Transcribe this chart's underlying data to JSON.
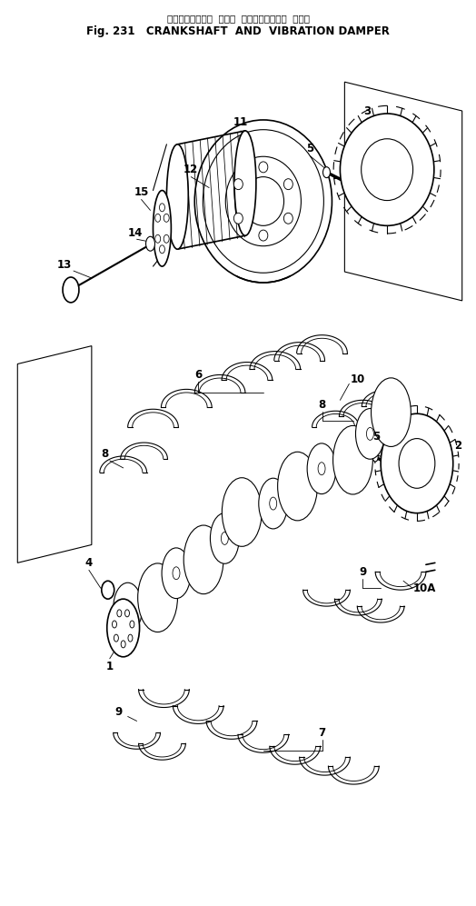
{
  "title_japanese": "クランクシャフト　および　バイブレーション　ダンパ",
  "title_english": "Fig. 231   CRANKSHAFT  AND  VIBRATION DAMPER",
  "bg_color": "#ffffff",
  "line_color": "#000000",
  "fig_width": 5.24,
  "fig_height": 9.97,
  "dpi": 100
}
